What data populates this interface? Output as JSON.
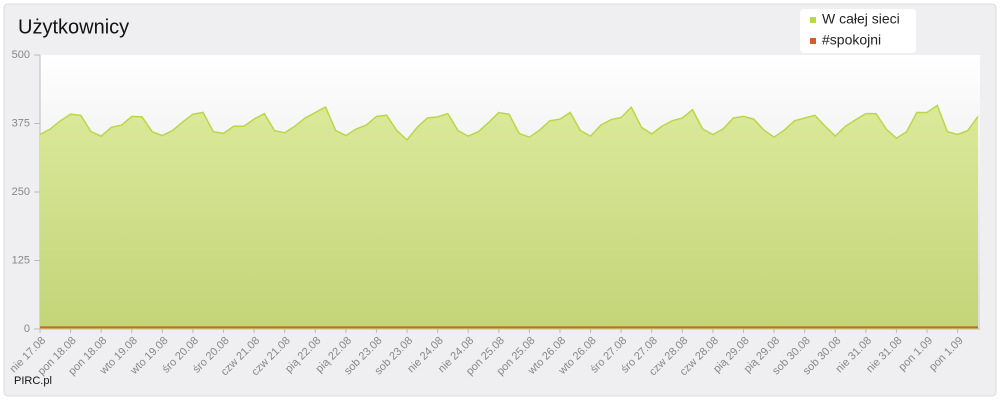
{
  "chart_data": {
    "type": "area",
    "title": "Użytkownicy",
    "footer": "PIRC.pl",
    "categories": [
      "nie 17.08",
      null,
      null,
      "pon 18.08",
      null,
      null,
      "pon 18.08",
      null,
      null,
      "wto 19.08",
      null,
      null,
      "wto 19.08",
      null,
      null,
      "śro 20.08",
      null,
      null,
      "śro 20.08",
      null,
      null,
      "czw 21.08",
      null,
      null,
      "czw 21.08",
      null,
      null,
      "pią 22.08",
      null,
      null,
      "pią 22.08",
      null,
      null,
      "sob 23.08",
      null,
      null,
      "sob 23.08",
      null,
      null,
      "nie 24.08",
      null,
      null,
      "nie 24.08",
      null,
      null,
      "pon 25.08",
      null,
      null,
      "pon 25.08",
      null,
      null,
      "wto 26.08",
      null,
      null,
      "wto 26.08",
      null,
      null,
      "śro 27.08",
      null,
      null,
      "śro 27.08",
      null,
      null,
      "czw 28.08",
      null,
      null,
      "czw 28.08",
      null,
      null,
      "pią 29.08",
      null,
      null,
      "pią 29.08",
      null,
      null,
      "sob 30.08",
      null,
      null,
      "sob 30.08",
      null,
      null,
      "nie 31.08",
      null,
      null,
      "nie 31.08",
      null,
      null,
      "pon 1.09",
      null,
      null,
      "pon 1.09",
      null,
      null
    ],
    "series": [
      {
        "name": "W całej sieci",
        "color": "#b8d848",
        "values": [
          355,
          365,
          380,
          392,
          390,
          360,
          352,
          368,
          372,
          388,
          387,
          360,
          353,
          362,
          378,
          392,
          395,
          360,
          357,
          370,
          370,
          383,
          393,
          362,
          358,
          370,
          385,
          395,
          405,
          362,
          353,
          365,
          372,
          388,
          390,
          362,
          345,
          368,
          385,
          387,
          393,
          362,
          352,
          360,
          377,
          395,
          392,
          357,
          350,
          363,
          380,
          383,
          395,
          362,
          352,
          372,
          382,
          386,
          405,
          368,
          356,
          370,
          380,
          385,
          400,
          365,
          355,
          365,
          385,
          388,
          383,
          363,
          350,
          363,
          380,
          385,
          390,
          370,
          352,
          370,
          382,
          393,
          393,
          365,
          348,
          360,
          395,
          395,
          408,
          360,
          355,
          362,
          388
        ]
      },
      {
        "name": "#spokojni",
        "color": "#d0602a",
        "values": [
          3,
          3,
          3,
          3,
          3,
          3,
          3,
          3,
          3,
          3,
          3,
          3,
          3,
          3,
          3,
          3,
          3,
          3,
          3,
          3,
          3,
          3,
          3,
          3,
          3,
          3,
          3,
          3,
          3,
          3,
          3,
          3,
          3,
          3,
          3,
          3,
          3,
          3,
          3,
          3,
          3,
          3,
          3,
          3,
          3,
          3,
          3,
          3,
          3,
          3,
          3,
          3,
          3,
          3,
          3,
          3,
          3,
          3,
          3,
          3,
          3,
          3,
          3,
          3,
          3,
          3,
          3,
          3,
          3,
          3,
          3,
          3,
          3,
          3,
          3,
          3,
          3,
          3,
          3,
          3,
          3,
          3,
          3,
          3,
          3,
          3,
          3,
          3,
          3,
          3,
          3,
          3,
          3
        ]
      }
    ],
    "ylim": [
      0,
      500
    ],
    "yticks": [
      0,
      125,
      250,
      375,
      500
    ],
    "legend": "top-right"
  }
}
